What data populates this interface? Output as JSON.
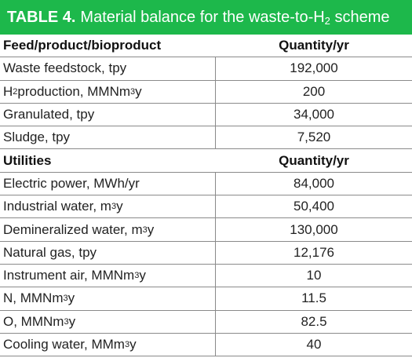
{
  "table": {
    "title_label": "TABLE 4.",
    "title_pre": "Material balance for the waste-to-H",
    "title_sub": "2",
    "title_post": " scheme",
    "rows": [
      {
        "kind": "header",
        "left": "Feed/product/bioproduct",
        "right": "Quantity/yr"
      },
      {
        "kind": "data",
        "left": "Waste feedstock, tpy",
        "right": "192,000"
      },
      {
        "kind": "data",
        "left_pre": "H",
        "left_sub": "2",
        "left_post": " production, MMNm",
        "left_sup": "3",
        "left_tail": "y",
        "right": "200"
      },
      {
        "kind": "data",
        "left": "Granulated, tpy",
        "right": "34,000"
      },
      {
        "kind": "data",
        "left": "Sludge, tpy",
        "right": "7,520"
      },
      {
        "kind": "header",
        "left": "Utilities",
        "right": "Quantity/yr"
      },
      {
        "kind": "data",
        "left": "Electric power, MWh/yr",
        "right": "84,000"
      },
      {
        "kind": "data",
        "left_pre": "Industrial water, m",
        "left_sup": "3",
        "left_tail": "y",
        "right": "50,400"
      },
      {
        "kind": "data",
        "left_pre": "Demineralized water, m",
        "left_sup": "3",
        "left_tail": "y",
        "right": "130,000"
      },
      {
        "kind": "data",
        "left": "Natural gas, tpy",
        "right": "12,176"
      },
      {
        "kind": "data",
        "left_pre": "Instrument air, MMNm",
        "left_sup": "3",
        "left_tail": "y",
        "right": "10"
      },
      {
        "kind": "data",
        "left_pre": "N, MMNm",
        "left_sup": "3",
        "left_tail": "y",
        "right": "11.5"
      },
      {
        "kind": "data",
        "left_pre": "O, MMNm",
        "left_sup": "3",
        "left_tail": "y",
        "right": "82.5"
      },
      {
        "kind": "data",
        "left_pre": "Cooling water, MMm",
        "left_sup": "3",
        "left_tail": "y",
        "right": "40"
      }
    ]
  },
  "colors": {
    "title_bg": "#1db84b",
    "title_text": "#ffffff",
    "rule": "#8a8a8a"
  }
}
